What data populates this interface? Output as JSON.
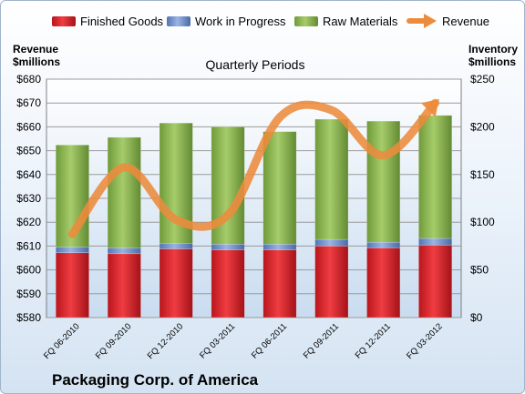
{
  "chart_data": {
    "type": "bar",
    "title": "Quarterly Periods",
    "footer": "Packaging Corp. of America",
    "left_axis": {
      "label_line1": "Revenue",
      "label_line2": "$millions",
      "min": 580,
      "max": 680,
      "step": 10,
      "tick_prefix": "$"
    },
    "right_axis": {
      "label_line1": "Inventory",
      "label_line2": "$millions",
      "min": 0,
      "max": 250,
      "step": 50,
      "tick_prefix": "$"
    },
    "categories": [
      "FQ 06-2010",
      "FQ 09-2010",
      "FQ 12-2010",
      "FQ 03-2011",
      "FQ 06-2011",
      "FQ 09-2011",
      "FQ 12-2011",
      "FQ 03-2012"
    ],
    "stacked": true,
    "series": [
      {
        "name": "Finished Goods",
        "axis": "right",
        "color": "#d9262c",
        "values": [
          68,
          67,
          72,
          71,
          71,
          75,
          73,
          76
        ]
      },
      {
        "name": "Work in Progress",
        "axis": "right",
        "color": "#6f8fc8",
        "values": [
          6,
          6,
          6,
          6,
          6,
          7,
          6,
          7
        ]
      },
      {
        "name": "Raw Materials",
        "axis": "right",
        "color": "#8cb454",
        "values": [
          107,
          116,
          126,
          123,
          118,
          126,
          127,
          129
        ]
      }
    ],
    "line_series": {
      "name": "Revenue",
      "axis": "left",
      "color": "#ec8b3c",
      "values": [
        615,
        643,
        621,
        623,
        664,
        667,
        648,
        670
      ]
    },
    "legend_position": "top",
    "grid": true
  }
}
